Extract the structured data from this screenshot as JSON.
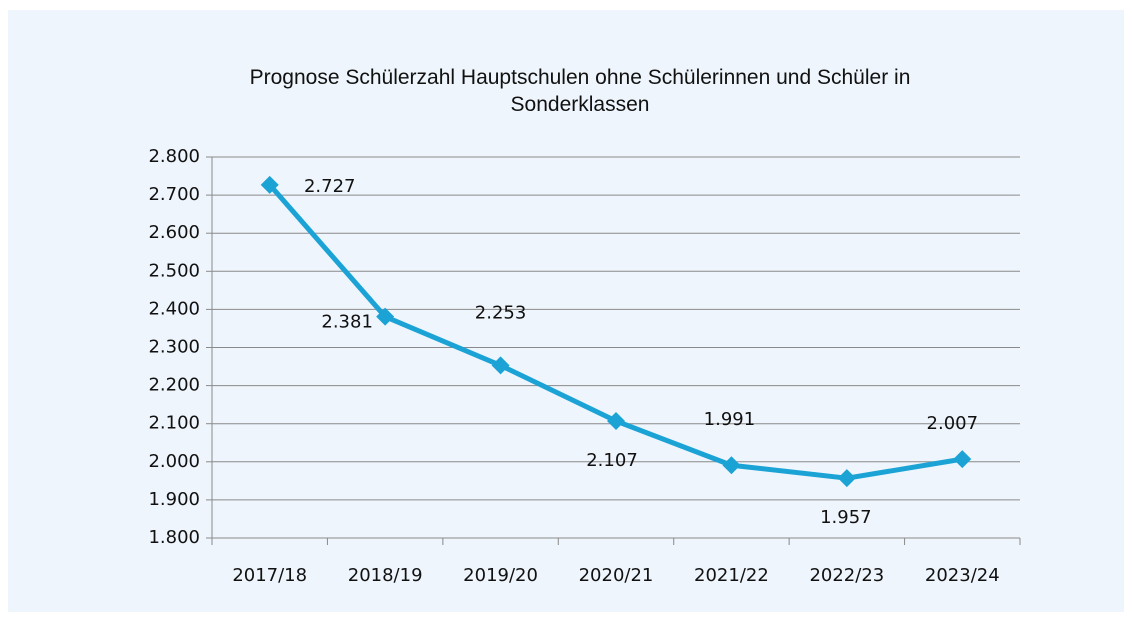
{
  "chart_data": {
    "type": "line",
    "title": "Prognose Schülerzahl Hauptschulen ohne Schülerinnen und Schüler in Sonderklassen",
    "categories": [
      "2017/18",
      "2018/19",
      "2019/20",
      "2020/21",
      "2021/22",
      "2022/23",
      "2023/24"
    ],
    "series": [
      {
        "name": "Schülerzahl",
        "color": "#1ca3d6",
        "values": [
          2727,
          2381,
          2253,
          2107,
          1991,
          1957,
          2007
        ],
        "value_labels": [
          "2.727",
          "2.381",
          "2.253",
          "2.107",
          "1.991",
          "1.957",
          "2.007"
        ]
      }
    ],
    "ylim": [
      1800,
      2800
    ],
    "yticks": [
      {
        "value": 1800,
        "label": "1.800"
      },
      {
        "value": 1900,
        "label": "1.900"
      },
      {
        "value": 2000,
        "label": "2.000"
      },
      {
        "value": 2100,
        "label": "2.100"
      },
      {
        "value": 2200,
        "label": "2.200"
      },
      {
        "value": 2300,
        "label": "2.300"
      },
      {
        "value": 2400,
        "label": "2.400"
      },
      {
        "value": 2500,
        "label": "2.500"
      },
      {
        "value": 2600,
        "label": "2.600"
      },
      {
        "value": 2700,
        "label": "2.700"
      },
      {
        "value": 2800,
        "label": "2.800"
      }
    ],
    "grid": true
  }
}
